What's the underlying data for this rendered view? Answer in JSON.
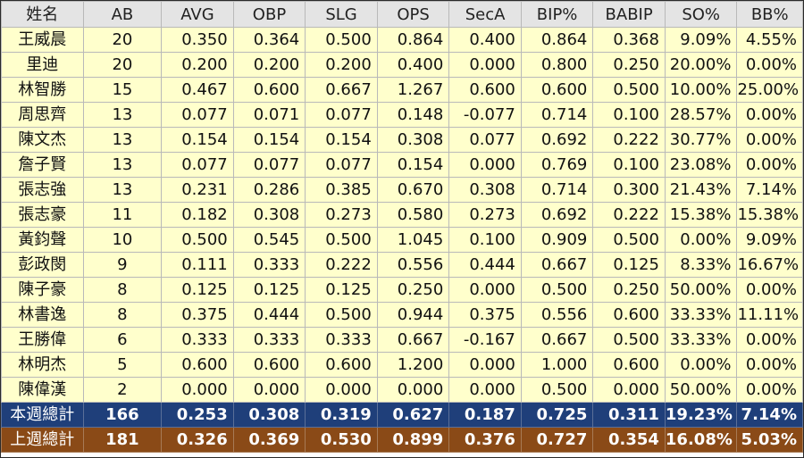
{
  "headers": [
    "姓名",
    "AB",
    "AVG",
    "OBP",
    "SLG",
    "OPS",
    "SecA",
    "BIP%",
    "BABIP",
    "SO%",
    "BB%"
  ],
  "rows": [
    [
      "王威晨",
      "20",
      "0.350",
      "0.364",
      "0.500",
      "0.864",
      "0.400",
      "0.864",
      "0.368",
      "9.09%",
      "4.55%"
    ],
    [
      "里迪",
      "20",
      "0.200",
      "0.200",
      "0.200",
      "0.400",
      "0.000",
      "0.800",
      "0.250",
      "20.00%",
      "0.00%"
    ],
    [
      "林智勝",
      "15",
      "0.467",
      "0.600",
      "0.667",
      "1.267",
      "0.600",
      "0.600",
      "0.500",
      "10.00%",
      "25.00%"
    ],
    [
      "周思齊",
      "13",
      "0.077",
      "0.071",
      "0.077",
      "0.148",
      "-0.077",
      "0.714",
      "0.100",
      "28.57%",
      "0.00%"
    ],
    [
      "陳文杰",
      "13",
      "0.154",
      "0.154",
      "0.154",
      "0.308",
      "0.077",
      "0.692",
      "0.222",
      "30.77%",
      "0.00%"
    ],
    [
      "詹子賢",
      "13",
      "0.077",
      "0.077",
      "0.077",
      "0.154",
      "0.000",
      "0.769",
      "0.100",
      "23.08%",
      "0.00%"
    ],
    [
      "張志強",
      "13",
      "0.231",
      "0.286",
      "0.385",
      "0.670",
      "0.308",
      "0.714",
      "0.300",
      "21.43%",
      "7.14%"
    ],
    [
      "張志豪",
      "11",
      "0.182",
      "0.308",
      "0.273",
      "0.580",
      "0.273",
      "0.692",
      "0.222",
      "15.38%",
      "15.38%"
    ],
    [
      "黃鈞聲",
      "10",
      "0.500",
      "0.545",
      "0.500",
      "1.045",
      "0.100",
      "0.909",
      "0.500",
      "0.00%",
      "9.09%"
    ],
    [
      "彭政閔",
      "9",
      "0.111",
      "0.333",
      "0.222",
      "0.556",
      "0.444",
      "0.667",
      "0.125",
      "8.33%",
      "16.67%"
    ],
    [
      "陳子豪",
      "8",
      "0.125",
      "0.125",
      "0.125",
      "0.250",
      "0.000",
      "0.500",
      "0.250",
      "50.00%",
      "0.00%"
    ],
    [
      "林書逸",
      "8",
      "0.375",
      "0.444",
      "0.500",
      "0.944",
      "0.375",
      "0.556",
      "0.600",
      "33.33%",
      "11.11%"
    ],
    [
      "王勝偉",
      "6",
      "0.333",
      "0.333",
      "0.333",
      "0.667",
      "-0.167",
      "0.667",
      "0.500",
      "33.33%",
      "0.00%"
    ],
    [
      "林明杰",
      "5",
      "0.600",
      "0.600",
      "0.600",
      "1.200",
      "0.000",
      "1.000",
      "0.600",
      "0.00%",
      "0.00%"
    ],
    [
      "陳偉漢",
      "2",
      "0.000",
      "0.000",
      "0.000",
      "0.000",
      "0.000",
      "0.500",
      "0.000",
      "50.00%",
      "0.00%"
    ]
  ],
  "totals": [
    {
      "style": "this",
      "cells": [
        "本週總計",
        "166",
        "0.253",
        "0.308",
        "0.319",
        "0.627",
        "0.187",
        "0.725",
        "0.311",
        "19.23%",
        "7.14%"
      ]
    },
    {
      "style": "last",
      "cells": [
        "上週總計",
        "181",
        "0.326",
        "0.369",
        "0.530",
        "0.899",
        "0.376",
        "0.727",
        "0.354",
        "16.08%",
        "5.03%"
      ]
    }
  ],
  "colors": {
    "header_bg": "#e4e4e4",
    "row_bg": "#ffffcc",
    "this_week_bg": "#1f3f7a",
    "last_week_bg": "#8a4a17"
  }
}
